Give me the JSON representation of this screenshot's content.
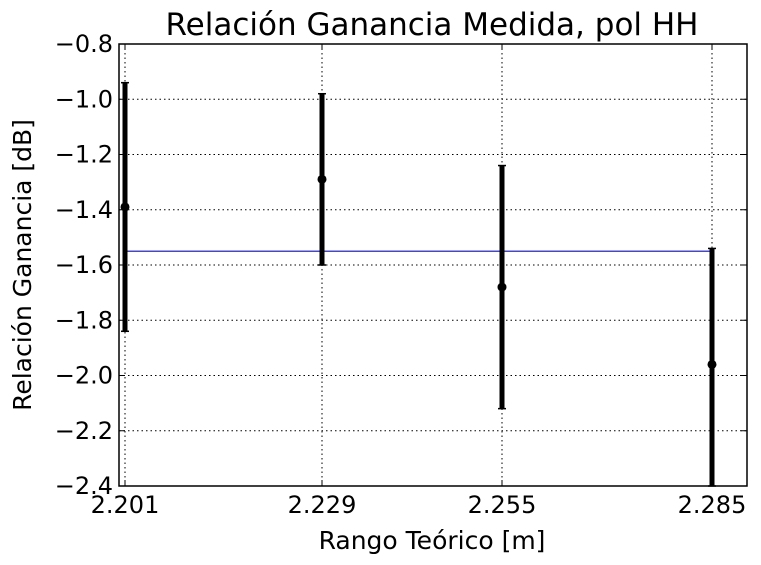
{
  "chart_data": {
    "type": "scatter",
    "title": "Relación Ganancia Medida, pol HH",
    "xlabel": "Rango Teórico [m]",
    "ylabel": "Relación Ganancia [dB]",
    "x_ticks": [
      "2.201",
      "2.229",
      "2.255",
      "2.285"
    ],
    "y_ticks": [
      "−0.8",
      "−1.0",
      "−1.2",
      "−1.4",
      "−1.6",
      "−1.8",
      "−2.0",
      "−2.2",
      "−2.4"
    ],
    "ylim": [
      -2.4,
      -0.8
    ],
    "grid": true,
    "series": [
      {
        "points": [
          {
            "x": "2.201",
            "y": -1.39,
            "y_low": -1.84,
            "y_high": -0.94
          },
          {
            "x": "2.229",
            "y": -1.29,
            "y_low": -1.6,
            "y_high": -0.98
          },
          {
            "x": "2.255",
            "y": -1.68,
            "y_low": -2.12,
            "y_high": -1.24
          },
          {
            "x": "2.285",
            "y": -1.96,
            "y_low": -2.4,
            "y_high": -1.54
          }
        ],
        "color": "#000000"
      }
    ],
    "reference_line": {
      "y": -1.55,
      "color": "#0000ff"
    }
  }
}
